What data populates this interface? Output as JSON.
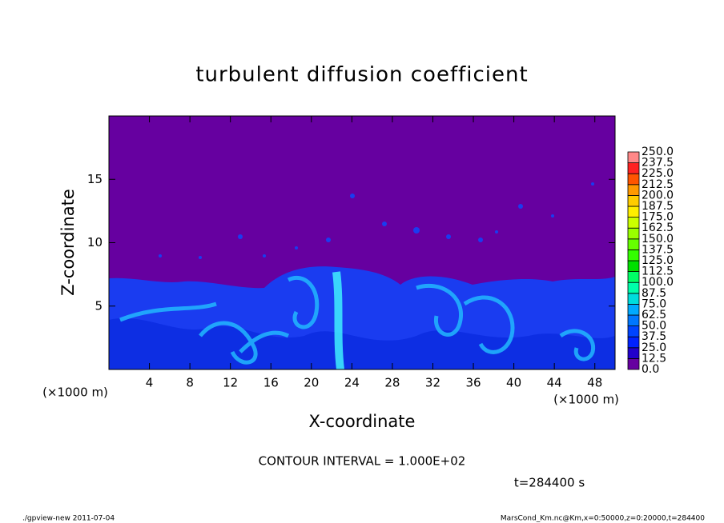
{
  "chart_data": {
    "type": "contour",
    "title": "turbulent diffusion coefficient",
    "xlabel": "X-coordinate",
    "ylabel": "Z-coordinate",
    "x_unit": "(×1000 m)",
    "y_unit": "(×1000 m)",
    "xlim": [
      0,
      50
    ],
    "xticks": [
      4,
      8,
      12,
      16,
      20,
      24,
      28,
      32,
      36,
      40,
      44,
      48
    ],
    "ylim": [
      0,
      20
    ],
    "yticks": [
      5,
      10,
      15
    ],
    "colorbar": {
      "levels": [
        {
          "value": 0,
          "label": "0.0"
        },
        12.5,
        {
          "value": 25,
          "label": "25.0"
        },
        37.5,
        {
          "value": 50,
          "label": "50.0"
        },
        62.5,
        {
          "value": 75,
          "label": "75.0"
        },
        87.5,
        {
          "value": 100,
          "label": "100.0"
        },
        112.5,
        {
          "value": 125,
          "label": "125.0"
        },
        137.5,
        {
          "value": 150,
          "label": "150.0"
        },
        162.5,
        {
          "value": 175,
          "label": "175.0"
        },
        187.5,
        {
          "value": 200,
          "label": "200.0"
        },
        212.5,
        {
          "value": 225,
          "label": "225.0"
        },
        237.5,
        {
          "value": 250,
          "label": "250.0"
        }
      ],
      "colors": [
        "#6600a0",
        "#2200cc",
        "#0022ff",
        "#0044ff",
        "#0077ff",
        "#00aaff",
        "#00dddd",
        "#00ffaa",
        "#00ff66",
        "#00e000",
        "#33ff00",
        "#66ff00",
        "#99ff00",
        "#ccff00",
        "#ffee00",
        "#ffcc00",
        "#ff9900",
        "#ff5500",
        "#ff2222",
        "#ff8888"
      ]
    },
    "contour_interval": "CONTOUR INTERVAL = 1.000E+02",
    "time_label": "t=284400 s",
    "footer_left": "./gpview-new  2011-07-04",
    "footer_right": "MarsCond_Km.nc@Km,x=0:50000,z=0:20000,t=284400"
  }
}
